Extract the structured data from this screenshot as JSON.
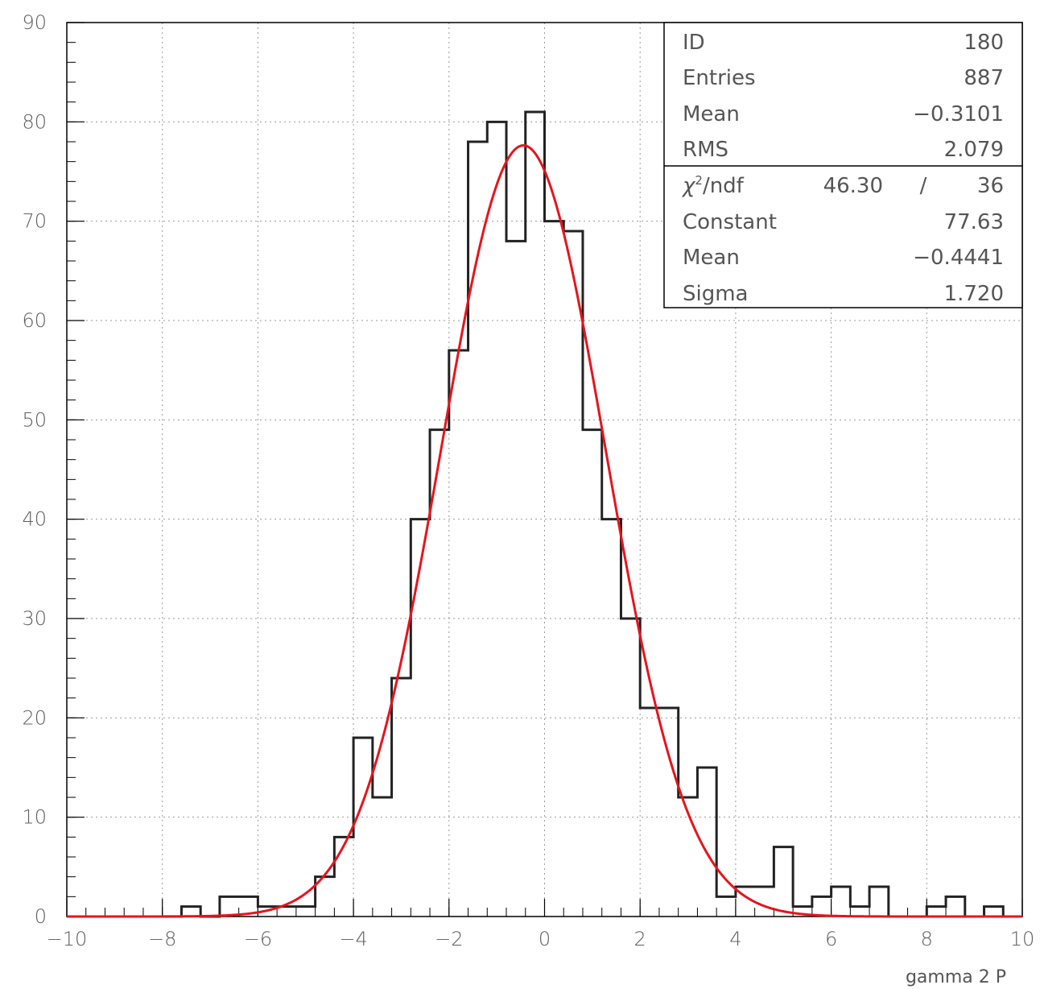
{
  "chart_data": {
    "type": "histogram",
    "xlabel": "gamma 2 P",
    "xlim": [
      -10,
      10
    ],
    "ylim": [
      0,
      90
    ],
    "grid": true,
    "x_ticks": [
      "-10",
      "-8",
      "-6",
      "-4",
      "-2",
      "0",
      "2",
      "4",
      "6",
      "8",
      "10"
    ],
    "y_ticks": [
      "0",
      "10",
      "20",
      "30",
      "40",
      "50",
      "60",
      "70",
      "80",
      "90"
    ],
    "bin_edges": [
      -10,
      -9.6,
      -9.2,
      -8.8,
      -8.4,
      -8.0,
      -7.6,
      -7.2,
      -6.8,
      -6.4,
      -6.0,
      -5.6,
      -5.2,
      -4.8,
      -4.4,
      -4.0,
      -3.6,
      -3.2,
      -2.8,
      -2.4,
      -2.0,
      -1.6,
      -1.2,
      -0.8,
      -0.4,
      0.0,
      0.4,
      0.8,
      1.2,
      1.6,
      2.0,
      2.4,
      2.8,
      3.2,
      3.6,
      4.0,
      4.4,
      4.8,
      5.2,
      5.6,
      6.0,
      6.4,
      6.8,
      7.2,
      7.6,
      8.0,
      8.4,
      8.8,
      9.2,
      9.6,
      10.0
    ],
    "counts": [
      0,
      0,
      0,
      0,
      0,
      0,
      1,
      0,
      2,
      2,
      1,
      1,
      1,
      4,
      8,
      18,
      12,
      24,
      40,
      49,
      57,
      78,
      80,
      68,
      81,
      70,
      69,
      49,
      40,
      30,
      21,
      21,
      12,
      15,
      2,
      3,
      3,
      7,
      1,
      2,
      3,
      1,
      3,
      0,
      0,
      1,
      2,
      0,
      1,
      0
    ],
    "fit": {
      "type": "gaussian",
      "color": "#e8131b",
      "constant": 77.63,
      "mean": -0.4441,
      "sigma": 1.72
    },
    "histogram_color": "#222222"
  },
  "stats_box": {
    "rows_top": [
      {
        "label": "ID",
        "value": "180"
      },
      {
        "label": "Entries",
        "value": "887"
      },
      {
        "label": "Mean",
        "value": "-0.3101"
      },
      {
        "label": "RMS",
        "value": "2.079"
      }
    ],
    "chi2_label": "/ndf",
    "chi2_value": "46.30",
    "chi2_sep": "/",
    "ndf_value": "36",
    "rows_bottom": [
      {
        "label": "Constant",
        "value": "77.63"
      },
      {
        "label": "Mean",
        "value": "-0.4441"
      },
      {
        "label": "Sigma",
        "value": "1.720"
      }
    ]
  }
}
